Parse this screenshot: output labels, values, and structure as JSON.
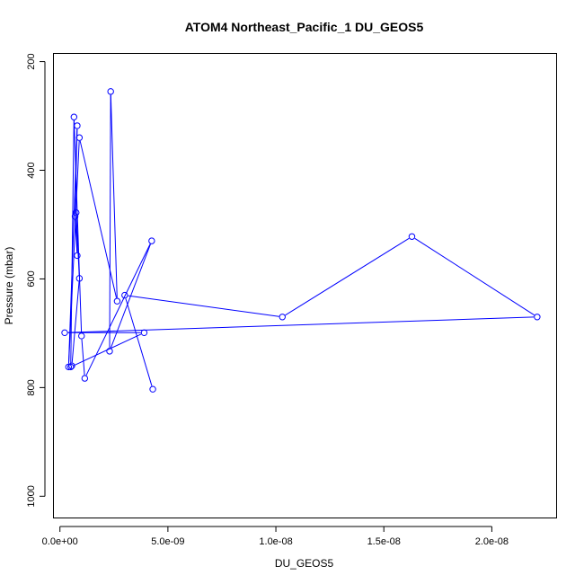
{
  "chart_data": {
    "type": "line",
    "title": "ATOM4 Northeast_Pacific_1 DU_GEOS5",
    "xlabel": "DU_GEOS5",
    "ylabel": "Pressure (mbar)",
    "xlim": [
      -3e-10,
      2.3e-08
    ],
    "ylim": [
      1040,
      185
    ],
    "y_reversed": true,
    "x_ticks": [
      0,
      5e-09,
      1e-08,
      1.5e-08,
      2e-08
    ],
    "x_tick_labels": [
      "0.0e+00",
      "5.0e-09",
      "1.0e-08",
      "1.5e-08",
      "2.0e-08"
    ],
    "y_ticks": [
      200,
      400,
      600,
      800,
      1000
    ],
    "y_tick_labels": [
      "200",
      "400",
      "600",
      "800",
      "1000"
    ],
    "grid": false,
    "marker": "open-circle",
    "series": [
      {
        "color": "#0000ff",
        "points": [
          {
            "x": 4.3e-09,
            "y": 803
          },
          {
            "x": 3e-09,
            "y": 630
          },
          {
            "x": 1.03e-08,
            "y": 670
          },
          {
            "x": 1.63e-08,
            "y": 522
          },
          {
            "x": 2.21e-08,
            "y": 670
          },
          {
            "x": 2.2e-10,
            "y": 699
          },
          {
            "x": 3.9e-09,
            "y": 699
          },
          {
            "x": 5e-10,
            "y": 762
          },
          {
            "x": 6.5e-10,
            "y": 302
          },
          {
            "x": 1e-09,
            "y": 705
          },
          {
            "x": 1.15e-09,
            "y": 783
          },
          {
            "x": 4.25e-09,
            "y": 530
          },
          {
            "x": 2.3e-09,
            "y": 733
          },
          {
            "x": 2.35e-09,
            "y": 255
          },
          {
            "x": 2.65e-09,
            "y": 641
          },
          {
            "x": 9e-10,
            "y": 340
          },
          {
            "x": 4e-10,
            "y": 762
          },
          {
            "x": 8e-10,
            "y": 318
          },
          {
            "x": 7e-10,
            "y": 485
          },
          {
            "x": 8e-10,
            "y": 557
          },
          {
            "x": 7.5e-10,
            "y": 478
          },
          {
            "x": 9e-10,
            "y": 599
          },
          {
            "x": 5.5e-10,
            "y": 760
          }
        ]
      }
    ]
  }
}
